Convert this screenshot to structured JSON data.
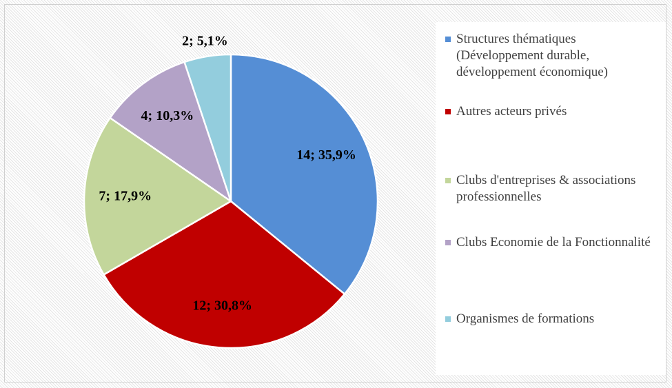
{
  "chart_data": {
    "type": "pie",
    "categories": [
      "Structures thématiques (Développement durable, développement économique)",
      "Autres acteurs privés",
      "Clubs d'entreprises & associations professionnelles",
      "Clubs Economie de la Fonctionnalité",
      "Organismes de formations"
    ],
    "values": [
      14,
      12,
      7,
      4,
      2
    ],
    "value_labels": [
      "14; 35,9%",
      "12; 30,8%",
      "7; 17,9%",
      "4; 10,3%",
      "2; 5,1%"
    ],
    "colors": [
      "#558ed5",
      "#c00000",
      "#c3d69b",
      "#b3a2c7",
      "#93cddd"
    ]
  }
}
